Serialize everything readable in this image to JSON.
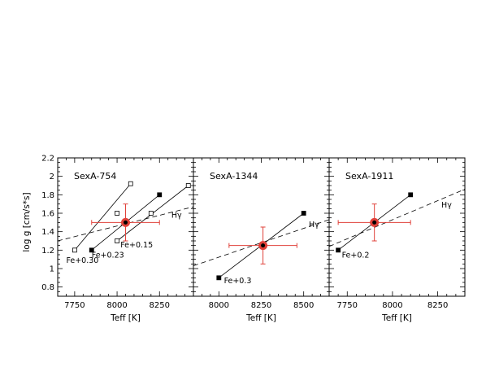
{
  "figure": {
    "ylabel": "log g [cm/s*s]",
    "xlabel": "Teff [K]"
  },
  "chart_data": [
    {
      "type": "scatter",
      "title": "SexA-754",
      "xlabel": "Teff [K]",
      "ylabel": "log g [cm/s*s]",
      "xlim": [
        7650,
        8450
      ],
      "ylim": [
        0.7,
        2.2
      ],
      "xticks": [
        7750,
        8000,
        8250
      ],
      "yticks": [
        0.8,
        1,
        1.2,
        1.4,
        1.6,
        1.8,
        2,
        2.2
      ],
      "fe_lines": [
        {
          "label": "Fe+0.30",
          "points": [
            [
              7750,
              1.2
            ],
            [
              8080,
              1.92
            ]
          ],
          "marker": "open-square",
          "label_at": [
            7700,
            1.06
          ]
        },
        {
          "label": "Fe+0.23",
          "points": [
            [
              7850,
              1.2
            ],
            [
              8250,
              1.8
            ]
          ],
          "marker": "filled-square",
          "label_at": [
            7850,
            1.12
          ]
        },
        {
          "label": "Fe+0.15",
          "points": [
            [
              8000,
              1.3
            ],
            [
              8420,
              1.9
            ]
          ],
          "marker": "open-square",
          "label_at": [
            8020,
            1.23
          ]
        }
      ],
      "extra_points": [
        {
          "x": 8000,
          "y": 1.6,
          "marker": "open-square"
        },
        {
          "x": 8200,
          "y": 1.6,
          "marker": "open-square"
        }
      ],
      "hgamma": {
        "label": "Hγ",
        "points": [
          [
            7650,
            1.3
          ],
          [
            8450,
            1.67
          ]
        ],
        "label_at": [
          8320,
          1.55
        ]
      },
      "best_fit": {
        "x": 8050,
        "y": 1.5,
        "x_err": 200,
        "y_err": 0.2
      }
    },
    {
      "type": "scatter",
      "title": "SexA-1344",
      "xlabel": "Teff [K]",
      "xlim": [
        7850,
        8650
      ],
      "ylim": [
        0.7,
        2.2
      ],
      "xticks": [
        8000,
        8250,
        8500
      ],
      "fe_lines": [
        {
          "label": "Fe+0.3",
          "points": [
            [
              8000,
              0.9
            ],
            [
              8500,
              1.6
            ]
          ],
          "marker": "filled-square",
          "label_at": [
            8030,
            0.84
          ]
        }
      ],
      "extra_points": [],
      "hgamma": {
        "label": "Hγ",
        "points": [
          [
            7850,
            1.03
          ],
          [
            8650,
            1.53
          ]
        ],
        "label_at": [
          8530,
          1.45
        ]
      },
      "best_fit": {
        "x": 8260,
        "y": 1.25,
        "x_err": 200,
        "y_err": 0.2
      }
    },
    {
      "type": "scatter",
      "title": "SexA-1911",
      "xlabel": "Teff [K]",
      "xlim": [
        7650,
        8400
      ],
      "ylim": [
        0.7,
        2.2
      ],
      "xticks": [
        7750,
        8000,
        8250
      ],
      "fe_lines": [
        {
          "label": "Fe+0.2",
          "points": [
            [
              7700,
              1.2
            ],
            [
              8100,
              1.8
            ]
          ],
          "marker": "filled-square",
          "label_at": [
            7720,
            1.12
          ]
        }
      ],
      "extra_points": [],
      "hgamma": {
        "label": "Hγ",
        "points": [
          [
            7650,
            1.24
          ],
          [
            8400,
            1.86
          ]
        ],
        "label_at": [
          8270,
          1.66
        ]
      },
      "best_fit": {
        "x": 7900,
        "y": 1.5,
        "x_err": 200,
        "y_err": 0.2
      }
    }
  ]
}
